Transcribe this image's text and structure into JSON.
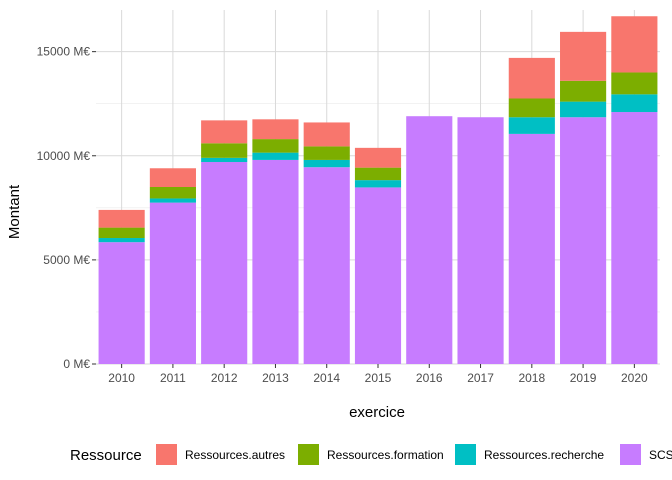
{
  "chart_data": {
    "type": "bar",
    "stacked": true,
    "xlabel": "exercice",
    "ylabel": "Montant",
    "categories": [
      "2010",
      "2011",
      "2012",
      "2013",
      "2014",
      "2015",
      "2016",
      "2017",
      "2018",
      "2019",
      "2020"
    ],
    "ylim": [
      0,
      17000
    ],
    "yticks": [
      0,
      5000,
      10000,
      15000
    ],
    "ytick_labels": [
      "0 M€",
      "5000 M€",
      "10000 M€",
      "15000 M€"
    ],
    "grid": true,
    "legend": {
      "title": "Ressource",
      "position": "bottom"
    },
    "series": [
      {
        "name": "SCSP",
        "color": "#C77CFF",
        "values": [
          5850,
          7750,
          9700,
          9800,
          9450,
          8480,
          11900,
          11850,
          11050,
          11850,
          12100
        ]
      },
      {
        "name": "Ressources.recherche",
        "color": "#00BFC4",
        "values": [
          200,
          200,
          200,
          350,
          350,
          350,
          0,
          0,
          800,
          750,
          850
        ]
      },
      {
        "name": "Ressources.formation",
        "color": "#7CAE00",
        "values": [
          500,
          550,
          700,
          650,
          650,
          600,
          0,
          0,
          900,
          1000,
          1050
        ]
      },
      {
        "name": "Ressources.autres",
        "color": "#F8766D",
        "values": [
          850,
          900,
          1100,
          950,
          1150,
          950,
          0,
          0,
          1950,
          2350,
          2700
        ]
      }
    ],
    "legend_order": [
      "Ressources.autres",
      "Ressources.formation",
      "Ressources.recherche",
      "SCSP"
    ]
  }
}
